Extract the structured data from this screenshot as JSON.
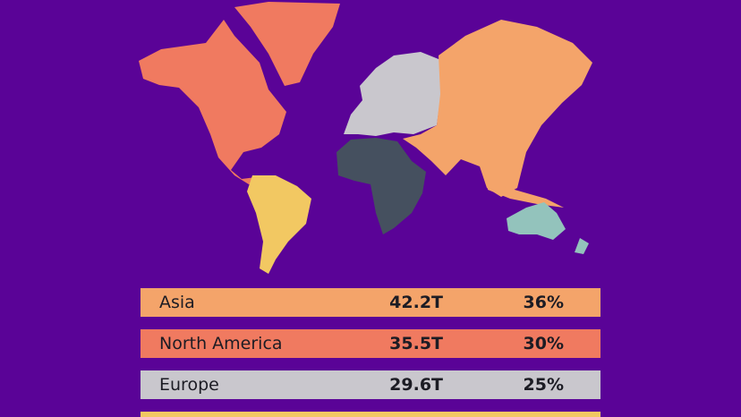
{
  "table": {
    "rows": [
      {
        "region": "Asia",
        "amount": "42.2T",
        "share": "36%",
        "color": "#f4a46a"
      },
      {
        "region": "North America",
        "amount": "35.5T",
        "share": "30%",
        "color": "#f07a60"
      },
      {
        "region": "Europe",
        "amount": "29.6T",
        "share": "25%",
        "color": "#c9c7cd"
      }
    ]
  }
}
